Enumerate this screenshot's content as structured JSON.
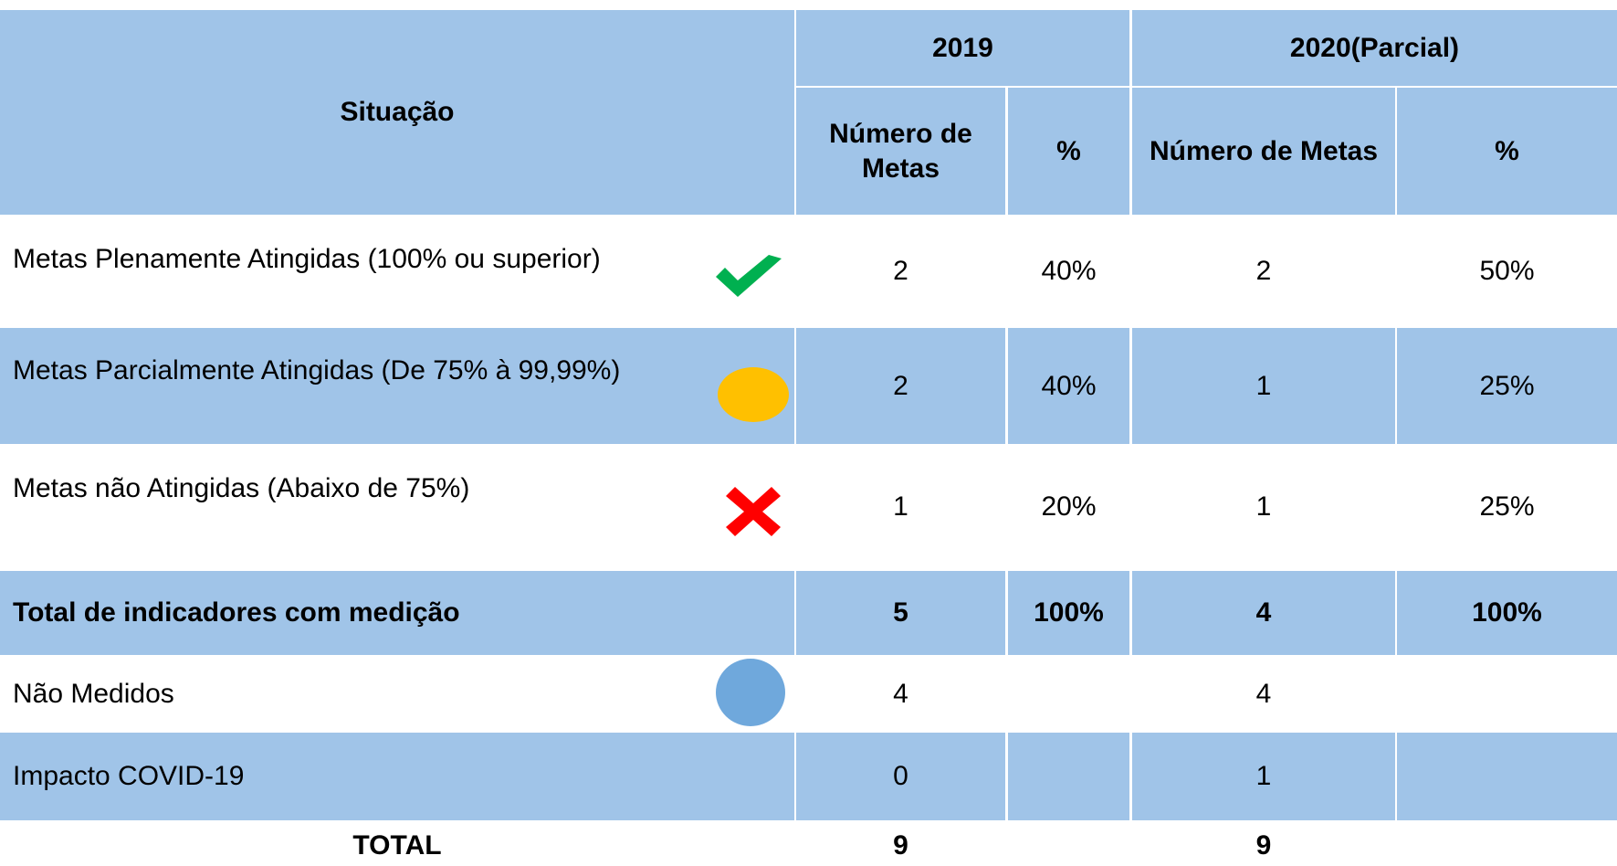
{
  "header": {
    "situacao": "Situação",
    "years": [
      "2019",
      "2020(Parcial)"
    ],
    "subheaders": [
      "Número de Metas",
      "%",
      "Número de Metas",
      "%"
    ]
  },
  "table": {
    "rows": [
      [
        "Metas Plenamente Atingidas (100% ou superior)",
        "2",
        "40%",
        "2",
        "50%"
      ],
      [
        "Metas Parcialmente Atingidas (De 75% à 99,99%)",
        "2",
        "40%",
        "1",
        "25%"
      ],
      [
        "Metas não Atingidas (Abaixo de 75%)",
        "1",
        "20%",
        "1",
        "25%"
      ],
      [
        "Total de indicadores com medição",
        "5",
        "100%",
        "4",
        "100%"
      ],
      [
        "Não Medidos",
        "4",
        "",
        "4",
        ""
      ],
      [
        "Impacto COVID-19",
        "0",
        "",
        "1",
        ""
      ]
    ]
  },
  "total": {
    "label": "TOTAL",
    "values": [
      "9",
      "9"
    ]
  }
}
